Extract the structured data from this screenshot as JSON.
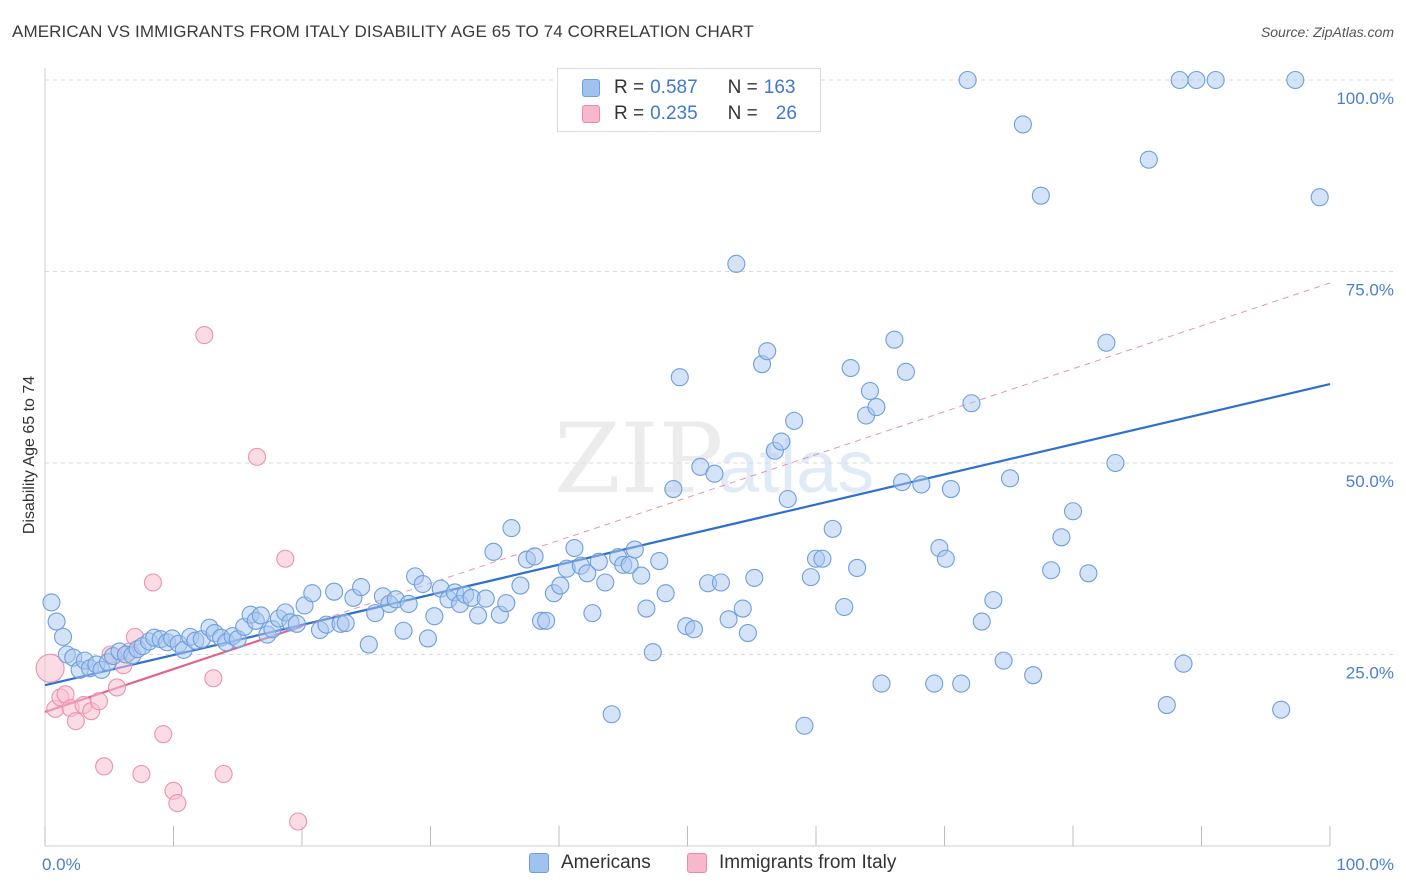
{
  "header": {
    "title": "AMERICAN VS IMMIGRANTS FROM ITALY DISABILITY AGE 65 TO 74 CORRELATION CHART",
    "source": "Source: ZipAtlas.com"
  },
  "watermark": "ZIPatlas",
  "legend": {
    "r_label": "R =",
    "n_label": "N =",
    "rows": [
      {
        "r": "0.587",
        "n": "163",
        "color": "#9fc2ee",
        "border": "#6c9fe0"
      },
      {
        "r": "0.235",
        "n": "26",
        "color": "#f6b8ca",
        "border": "#ea8aa8"
      }
    ]
  },
  "bottom_legend": {
    "americans": "Americans",
    "italy": "Immigrants from Italy"
  },
  "colors": {
    "blue_fill": "#a9c8f0",
    "blue_stroke": "#6e9fdc",
    "blue_line": "#2f6fd0",
    "pink_fill": "#f7bfd0",
    "pink_stroke": "#e993ae",
    "pink_line": "#e0648e",
    "grid": "#d9d9d9",
    "tick_text": "#4a7fd0"
  },
  "chart_data": {
    "type": "scatter",
    "title": "AMERICAN VS IMMIGRANTS FROM ITALY DISABILITY AGE 65 TO 74 CORRELATION CHART",
    "xlabel": "",
    "ylabel": "Disability Age 65 to 74",
    "xlim": [
      0,
      100
    ],
    "ylim": [
      0,
      100
    ],
    "x_tick_labels": [
      "0.0%",
      "100.0%"
    ],
    "y_tick_labels": [
      "25.0%",
      "50.0%",
      "75.0%",
      "100.0%"
    ],
    "y_ticks": [
      25,
      50,
      75,
      100
    ],
    "grid": true,
    "legend_position": "top-center",
    "series": [
      {
        "name": "Americans",
        "r": 0.587,
        "n": 163,
        "trend": {
          "x0": 0,
          "y0": 21.0,
          "x1": 100,
          "y1": 60.3
        },
        "points": [
          [
            0.5,
            31.8
          ],
          [
            0.9,
            29.3
          ],
          [
            1.4,
            27.3
          ],
          [
            1.7,
            25.0
          ],
          [
            2.2,
            24.6
          ],
          [
            2.7,
            23.0
          ],
          [
            3.1,
            24.2
          ],
          [
            3.5,
            23.2
          ],
          [
            4.0,
            23.7
          ],
          [
            4.4,
            23.0
          ],
          [
            4.9,
            24.0
          ],
          [
            5.3,
            24.8
          ],
          [
            5.8,
            25.4
          ],
          [
            6.3,
            25.0
          ],
          [
            6.8,
            24.9
          ],
          [
            7.2,
            25.7
          ],
          [
            7.6,
            26.1
          ],
          [
            8.1,
            26.7
          ],
          [
            8.5,
            27.2
          ],
          [
            9.0,
            27.0
          ],
          [
            9.5,
            26.6
          ],
          [
            9.9,
            27.1
          ],
          [
            10.4,
            26.4
          ],
          [
            10.8,
            25.6
          ],
          [
            11.3,
            27.3
          ],
          [
            11.7,
            26.8
          ],
          [
            12.2,
            27.0
          ],
          [
            12.8,
            28.5
          ],
          [
            13.2,
            27.8
          ],
          [
            13.7,
            27.2
          ],
          [
            14.1,
            26.6
          ],
          [
            14.6,
            27.4
          ],
          [
            15.0,
            27.0
          ],
          [
            15.5,
            28.6
          ],
          [
            16.0,
            30.2
          ],
          [
            16.4,
            29.4
          ],
          [
            16.8,
            30.1
          ],
          [
            17.3,
            27.6
          ],
          [
            17.7,
            28.3
          ],
          [
            18.2,
            29.7
          ],
          [
            18.7,
            30.5
          ],
          [
            19.1,
            29.2
          ],
          [
            19.6,
            29.0
          ],
          [
            20.2,
            31.4
          ],
          [
            20.8,
            33.0
          ],
          [
            21.4,
            28.2
          ],
          [
            21.9,
            28.9
          ],
          [
            22.5,
            33.2
          ],
          [
            23.0,
            29.0
          ],
          [
            23.4,
            29.1
          ],
          [
            24.0,
            32.4
          ],
          [
            24.6,
            33.8
          ],
          [
            25.2,
            26.3
          ],
          [
            25.7,
            30.4
          ],
          [
            26.3,
            32.6
          ],
          [
            26.8,
            31.6
          ],
          [
            27.3,
            32.2
          ],
          [
            27.9,
            28.1
          ],
          [
            28.3,
            31.6
          ],
          [
            28.8,
            35.2
          ],
          [
            29.4,
            34.2
          ],
          [
            29.8,
            27.1
          ],
          [
            30.3,
            30.0
          ],
          [
            30.8,
            33.6
          ],
          [
            31.4,
            32.2
          ],
          [
            31.9,
            33.1
          ],
          [
            32.3,
            31.6
          ],
          [
            32.7,
            32.8
          ],
          [
            33.2,
            32.4
          ],
          [
            33.7,
            30.1
          ],
          [
            34.3,
            32.3
          ],
          [
            34.9,
            38.4
          ],
          [
            35.4,
            30.2
          ],
          [
            35.9,
            31.7
          ],
          [
            36.3,
            41.5
          ],
          [
            37.0,
            34.0
          ],
          [
            37.5,
            37.4
          ],
          [
            38.1,
            37.8
          ],
          [
            38.6,
            29.4
          ],
          [
            39.0,
            29.4
          ],
          [
            39.6,
            33.0
          ],
          [
            40.1,
            34.0
          ],
          [
            40.6,
            36.2
          ],
          [
            41.2,
            38.9
          ],
          [
            41.7,
            36.6
          ],
          [
            42.2,
            35.6
          ],
          [
            42.6,
            30.4
          ],
          [
            43.1,
            37.1
          ],
          [
            43.6,
            34.4
          ],
          [
            44.1,
            17.2
          ],
          [
            44.6,
            37.7
          ],
          [
            45.0,
            36.7
          ],
          [
            45.5,
            36.7
          ],
          [
            45.9,
            38.7
          ],
          [
            46.4,
            35.3
          ],
          [
            46.8,
            31.0
          ],
          [
            47.3,
            25.3
          ],
          [
            47.8,
            37.2
          ],
          [
            48.3,
            33.0
          ],
          [
            48.9,
            46.6
          ],
          [
            49.4,
            61.2
          ],
          [
            49.9,
            28.7
          ],
          [
            50.5,
            28.3
          ],
          [
            51.0,
            49.5
          ],
          [
            51.6,
            34.3
          ],
          [
            52.1,
            48.6
          ],
          [
            52.6,
            34.4
          ],
          [
            53.2,
            29.6
          ],
          [
            53.8,
            76.0
          ],
          [
            54.3,
            31.0
          ],
          [
            54.7,
            27.8
          ],
          [
            55.2,
            35.0
          ],
          [
            55.8,
            62.9
          ],
          [
            56.2,
            64.6
          ],
          [
            56.8,
            51.6
          ],
          [
            57.3,
            52.8
          ],
          [
            57.8,
            45.3
          ],
          [
            58.3,
            55.5
          ],
          [
            59.1,
            15.7
          ],
          [
            59.6,
            35.1
          ],
          [
            60.0,
            37.5
          ],
          [
            60.5,
            37.5
          ],
          [
            61.3,
            41.4
          ],
          [
            62.2,
            31.2
          ],
          [
            62.7,
            62.4
          ],
          [
            63.2,
            36.3
          ],
          [
            63.9,
            56.2
          ],
          [
            64.2,
            59.4
          ],
          [
            64.7,
            57.3
          ],
          [
            65.1,
            21.2
          ],
          [
            66.1,
            66.1
          ],
          [
            66.7,
            47.5
          ],
          [
            67.0,
            61.9
          ],
          [
            68.2,
            47.2
          ],
          [
            69.2,
            21.2
          ],
          [
            69.6,
            38.9
          ],
          [
            70.1,
            37.5
          ],
          [
            70.5,
            46.6
          ],
          [
            71.3,
            21.2
          ],
          [
            72.1,
            57.8
          ],
          [
            72.9,
            29.3
          ],
          [
            73.8,
            32.1
          ],
          [
            74.6,
            24.2
          ],
          [
            75.1,
            48.0
          ],
          [
            76.1,
            94.2
          ],
          [
            76.9,
            22.3
          ],
          [
            77.5,
            84.9
          ],
          [
            78.3,
            36.0
          ],
          [
            79.1,
            40.3
          ],
          [
            80.0,
            43.7
          ],
          [
            81.2,
            35.6
          ],
          [
            82.6,
            65.7
          ],
          [
            83.3,
            50.0
          ],
          [
            85.9,
            89.6
          ],
          [
            87.3,
            18.4
          ],
          [
            88.6,
            23.8
          ],
          [
            89.6,
            100.0
          ],
          [
            91.1,
            100.0
          ],
          [
            96.2,
            17.8
          ],
          [
            97.3,
            100.0
          ],
          [
            99.2,
            84.7
          ],
          [
            71.8,
            100.0
          ],
          [
            88.3,
            100.0
          ]
        ]
      },
      {
        "name": "Immigrants from Italy",
        "r": 0.235,
        "n": 26,
        "trend": {
          "x0": 0,
          "y0": 17.5,
          "x1": 100,
          "y1": 73.5
        },
        "trend_solid_until_x": 20,
        "points": [
          [
            0.4,
            23.2
          ],
          [
            0.8,
            17.9
          ],
          [
            1.2,
            19.4
          ],
          [
            1.6,
            19.8
          ],
          [
            2.0,
            18.0
          ],
          [
            2.4,
            16.3
          ],
          [
            3.0,
            18.4
          ],
          [
            3.6,
            17.6
          ],
          [
            4.2,
            18.9
          ],
          [
            4.6,
            10.4
          ],
          [
            5.1,
            25.0
          ],
          [
            5.6,
            20.7
          ],
          [
            6.1,
            23.6
          ],
          [
            6.6,
            25.4
          ],
          [
            7.0,
            27.3
          ],
          [
            7.5,
            9.4
          ],
          [
            8.4,
            34.4
          ],
          [
            9.2,
            14.6
          ],
          [
            10.0,
            7.2
          ],
          [
            10.3,
            5.6
          ],
          [
            12.4,
            66.7
          ],
          [
            13.1,
            21.9
          ],
          [
            13.9,
            9.4
          ],
          [
            16.5,
            50.8
          ],
          [
            18.7,
            37.5
          ],
          [
            19.7,
            3.2
          ]
        ]
      }
    ]
  }
}
